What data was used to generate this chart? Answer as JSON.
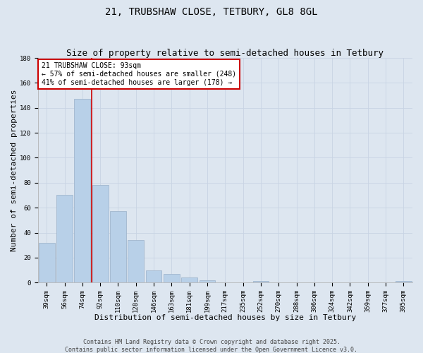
{
  "title": "21, TRUBSHAW CLOSE, TETBURY, GL8 8GL",
  "subtitle": "Size of property relative to semi-detached houses in Tetbury",
  "xlabel": "Distribution of semi-detached houses by size in Tetbury",
  "ylabel": "Number of semi-detached properties",
  "categories": [
    "39sqm",
    "56sqm",
    "74sqm",
    "92sqm",
    "110sqm",
    "128sqm",
    "146sqm",
    "163sqm",
    "181sqm",
    "199sqm",
    "217sqm",
    "235sqm",
    "252sqm",
    "270sqm",
    "288sqm",
    "306sqm",
    "324sqm",
    "342sqm",
    "359sqm",
    "377sqm",
    "395sqm"
  ],
  "values": [
    32,
    70,
    147,
    78,
    57,
    34,
    10,
    7,
    4,
    2,
    0,
    0,
    1,
    0,
    0,
    0,
    0,
    0,
    0,
    0,
    1
  ],
  "bar_color": "#b8d0e8",
  "bar_edge_color": "#9ab0c8",
  "grid_color": "#c8d4e4",
  "background_color": "#dde6f0",
  "vline_color": "#cc0000",
  "vline_x_index": 2.5,
  "ylim": [
    0,
    180
  ],
  "yticks": [
    0,
    20,
    40,
    60,
    80,
    100,
    120,
    140,
    160,
    180
  ],
  "annotation_title": "21 TRUBSHAW CLOSE: 93sqm",
  "annotation_line1": "← 57% of semi-detached houses are smaller (248)",
  "annotation_line2": "41% of semi-detached houses are larger (178) →",
  "footer_line1": "Contains HM Land Registry data © Crown copyright and database right 2025.",
  "footer_line2": "Contains public sector information licensed under the Open Government Licence v3.0.",
  "title_fontsize": 10,
  "subtitle_fontsize": 9,
  "axis_label_fontsize": 8,
  "tick_fontsize": 6.5,
  "annotation_fontsize": 7,
  "footer_fontsize": 6
}
